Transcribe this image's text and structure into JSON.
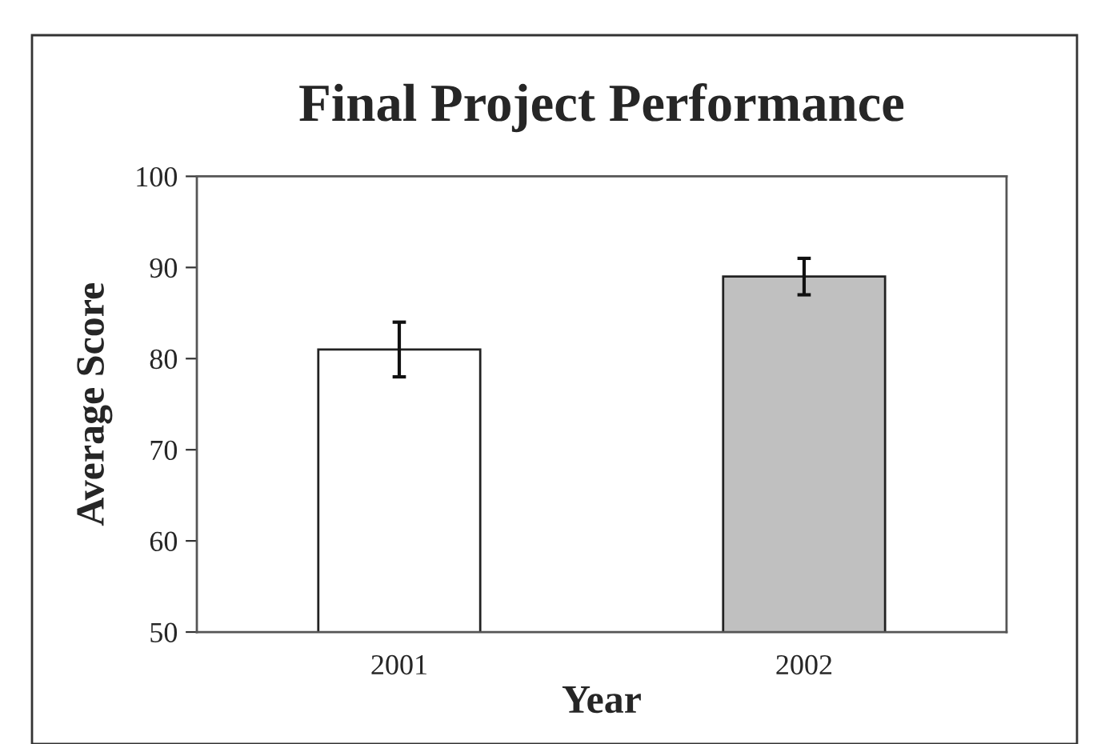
{
  "chart_data": {
    "type": "bar",
    "title": "Final Project Performance",
    "xlabel": "Year",
    "ylabel": "Average Score",
    "categories": [
      "2001",
      "2002"
    ],
    "values": [
      81,
      89
    ],
    "errors": [
      3,
      2
    ],
    "colors": [
      "#ffffff",
      "#c0c0c0"
    ],
    "ylim": [
      50,
      100
    ],
    "yticks": [
      50,
      60,
      70,
      80,
      90,
      100
    ],
    "grid": false,
    "legend": false
  }
}
